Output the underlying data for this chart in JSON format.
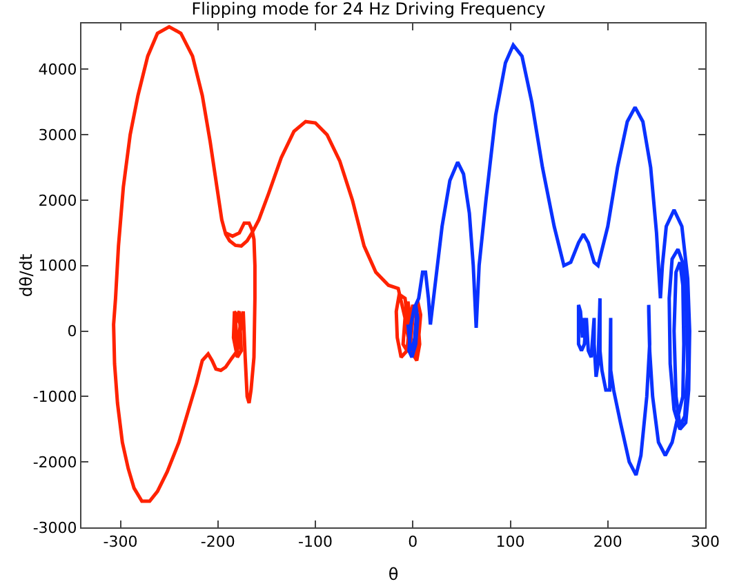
{
  "chart_data": {
    "type": "line",
    "title": "Flipping mode for 24 Hz Driving Frequency",
    "xlabel": "θ",
    "ylabel": "dθ/dt",
    "xlim": [
      -340,
      300
    ],
    "xticks": [
      -300,
      -200,
      -100,
      0,
      100,
      200,
      300
    ],
    "ylim": [
      -3000,
      4700
    ],
    "yticks": [
      -3000,
      -2000,
      -1000,
      0,
      1000,
      2000,
      3000,
      4000
    ],
    "series": [
      {
        "color": "#ff2200",
        "x": [
          3,
          6,
          8,
          5,
          0,
          -3,
          -4,
          0,
          5,
          7,
          4,
          -2,
          -6,
          -8,
          -5,
          -2,
          -6,
          -12,
          -16,
          -17,
          -14,
          -8,
          -4,
          -6,
          -10,
          -8,
          -15,
          -25,
          -38,
          -50,
          -62,
          -75,
          -88,
          -100,
          -110,
          -122,
          -135,
          -148,
          -158,
          -165,
          -170,
          -176,
          -182,
          -188,
          -192,
          -196,
          -201,
          -208,
          -216,
          -226,
          -238,
          -250,
          -262,
          -272,
          -282,
          -290,
          -297,
          -302,
          -305,
          -307,
          -306,
          -303,
          -298,
          -292,
          -286,
          -278,
          -270,
          -262,
          -252,
          -240,
          -230,
          -222,
          -216,
          -210,
          -206,
          -202,
          -197,
          -192,
          -186,
          -180,
          -177,
          -183,
          -184,
          -180,
          -176,
          -178,
          -182,
          -180,
          -177,
          -174,
          -172,
          -170,
          -168,
          -166,
          -163,
          -162,
          -162,
          -163,
          -165,
          -168,
          -173,
          -178,
          -185,
          -192
        ],
        "values": [
          -400,
          -100,
          250,
          450,
          200,
          -300,
          100,
          400,
          200,
          -200,
          -450,
          -300,
          0,
          300,
          450,
          100,
          -300,
          -400,
          -100,
          300,
          560,
          500,
          0,
          -300,
          -200,
          200,
          650,
          700,
          900,
          1300,
          2000,
          2600,
          3000,
          3180,
          3200,
          3050,
          2650,
          2100,
          1700,
          1500,
          1380,
          1300,
          1310,
          1380,
          1480,
          1700,
          2200,
          2900,
          3600,
          4200,
          4550,
          4650,
          4550,
          4200,
          3600,
          3000,
          2200,
          1300,
          500,
          100,
          -500,
          -1100,
          -1700,
          -2100,
          -2400,
          -2600,
          -2600,
          -2450,
          -2150,
          -1700,
          -1200,
          -800,
          -450,
          -350,
          -450,
          -580,
          -600,
          -550,
          -420,
          -300,
          100,
          300,
          -100,
          -400,
          -300,
          300,
          200,
          -300,
          0,
          300,
          -400,
          -1000,
          -1100,
          -900,
          -400,
          500,
          1000,
          1400,
          1550,
          1650,
          1650,
          1500,
          1450,
          1500
        ]
      },
      {
        "color": "#0a32ff",
        "x": [
          -5,
          -3,
          -1,
          2,
          4,
          2,
          -2,
          -4,
          -1,
          3,
          5,
          3,
          6,
          10,
          13,
          16,
          18,
          22,
          30,
          38,
          46,
          52,
          58,
          62,
          65,
          68,
          75,
          85,
          95,
          103,
          112,
          122,
          133,
          145,
          155,
          162,
          170,
          175,
          180,
          186,
          190,
          200,
          210,
          220,
          228,
          236,
          244,
          250,
          254,
          256,
          260,
          268,
          276,
          282,
          284,
          283,
          280,
          274,
          268,
          264,
          263,
          266,
          272,
          278,
          281,
          282,
          279,
          274,
          270,
          268,
          270,
          274,
          277,
          278,
          277,
          272,
          266,
          259,
          252,
          246,
          243,
          242,
          242,
          243,
          240,
          234,
          229,
          222,
          213,
          206,
          203,
          203,
          202,
          198,
          194,
          192,
          192,
          190,
          188,
          186,
          186,
          183,
          180,
          178,
          176,
          173,
          170,
          170,
          172,
          174,
          176
        ],
        "values": [
          100,
          -200,
          -300,
          -100,
          300,
          400,
          100,
          -300,
          -400,
          -200,
          200,
          400,
          500,
          900,
          900,
          500,
          100,
          600,
          1600,
          2300,
          2580,
          2400,
          1800,
          1000,
          50,
          1000,
          2000,
          3300,
          4100,
          4370,
          4200,
          3500,
          2500,
          1600,
          1000,
          1050,
          1350,
          1480,
          1350,
          1050,
          1000,
          1600,
          2500,
          3200,
          3420,
          3200,
          2500,
          1500,
          500,
          1000,
          1600,
          1850,
          1600,
          800,
          0,
          -900,
          -1400,
          -1500,
          -1200,
          -500,
          500,
          1100,
          1250,
          1000,
          300,
          -600,
          -1300,
          -1450,
          -1000,
          0,
          900,
          1050,
          700,
          -200,
          -1000,
          -1300,
          -1700,
          -1900,
          -1700,
          -1000,
          -300,
          300,
          400,
          -200,
          -1000,
          -1900,
          -2200,
          -2000,
          -1400,
          -900,
          -600,
          200,
          -900,
          -900,
          -600,
          -300,
          500,
          -500,
          -700,
          -200,
          200,
          -400,
          -300,
          200,
          -200,
          -300,
          -200,
          400,
          300,
          -100,
          200
        ]
      }
    ]
  }
}
